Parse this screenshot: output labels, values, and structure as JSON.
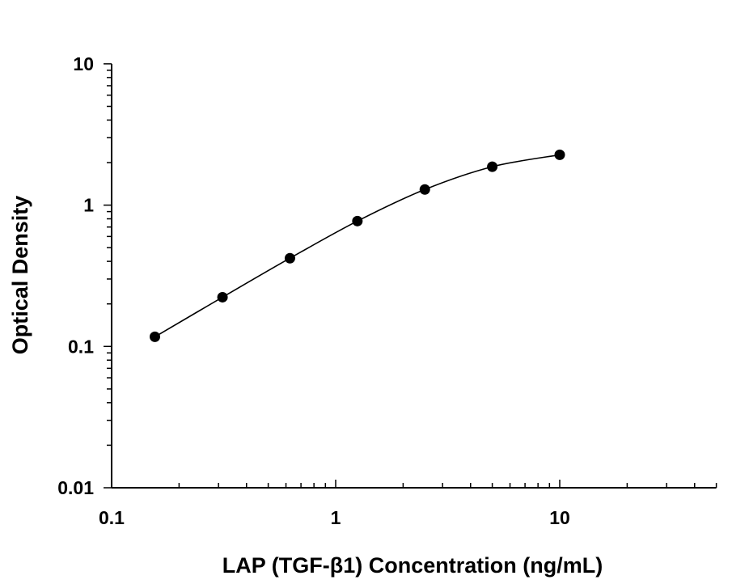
{
  "chart_data": {
    "type": "scatter",
    "title": "",
    "xlabel": "LAP (TGF-β1) Concentration (ng/mL)",
    "ylabel": "Optical Density",
    "xscale": "log",
    "yscale": "log",
    "xlim": [
      0.1,
      50
    ],
    "ylim": [
      0.01,
      10
    ],
    "xticks": [
      "0.1",
      "1",
      "10"
    ],
    "yticks": [
      "0.01",
      "0.1",
      "1",
      "10"
    ],
    "grid": false,
    "legend": "none",
    "fit_curve": true,
    "marker_color": "#000000",
    "series": [
      {
        "x": [
          0.156,
          0.3125,
          0.625,
          1.25,
          2.5,
          5,
          10
        ],
        "y": [
          0.117,
          0.223,
          0.421,
          0.771,
          1.29,
          1.87,
          2.27
        ]
      }
    ]
  }
}
